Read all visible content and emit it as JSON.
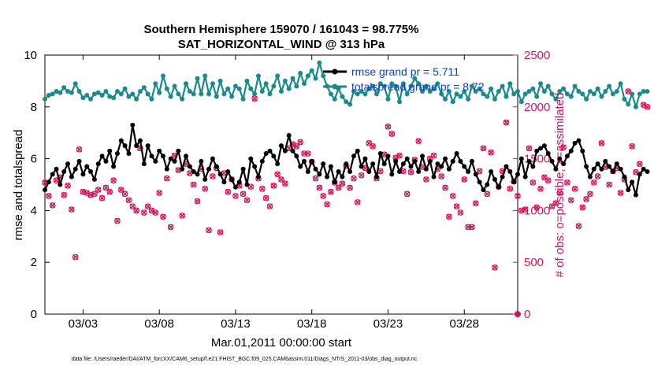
{
  "chart_data": {
    "type": "line",
    "title_line1": "Southern Hemisphere 159070 / 161043 = 98.775%",
    "title_line2": "SAT_HORIZONTAL_WIND @ 313 hPa",
    "xlabel": "Mar.01,2011 00:00:00 start",
    "ylabel_left": "rmse and totalspread",
    "ylabel_right": "# of obs: o=possible; ×=assimilated",
    "footer": "data file: /Users/raeder/DAI/ATM_forcXX/CAM6_setup/f.e21.FHIST_BGC.f09_025.CAM6assim.011/Diags_NTrS_2011-03/obs_diag_output.nc",
    "xlim": [
      0.5,
      31.5
    ],
    "ylim_left": [
      0,
      10
    ],
    "ylim_right": [
      0,
      2500
    ],
    "x_ticks": [
      {
        "x": 3,
        "label": "03/03"
      },
      {
        "x": 8,
        "label": "03/08"
      },
      {
        "x": 13,
        "label": "03/13"
      },
      {
        "x": 18,
        "label": "03/18"
      },
      {
        "x": 23,
        "label": "03/23"
      },
      {
        "x": 28,
        "label": "03/28"
      }
    ],
    "y_ticks_left": [
      0,
      2,
      4,
      6,
      8,
      10
    ],
    "y_ticks_right": [
      0,
      500,
      1000,
      1500,
      2000,
      2500
    ],
    "grid": false,
    "colors": {
      "rmse": "#000000",
      "spread": "#1a8a8a",
      "obs": "#d4145a",
      "legend_text": "#0a3fd6"
    },
    "legend": {
      "placement": "top-right",
      "entries": [
        "rmse grand pr = 5.711",
        "totalspread grand pr = 8.72"
      ]
    },
    "x_start": 0.5,
    "x_step": 0.25,
    "series": [
      {
        "name": "rmse grand pr = 5.711",
        "axis": "left",
        "values": [
          4.8,
          5.1,
          5.4,
          5.6,
          5.0,
          5.5,
          5.8,
          5.3,
          5.6,
          5.9,
          5.4,
          5.7,
          5.5,
          5.2,
          5.8,
          6.1,
          5.9,
          6.3,
          5.7,
          6.2,
          6.7,
          6.5,
          6.2,
          7.3,
          6.5,
          6.7,
          5.8,
          6.5,
          6.1,
          5.9,
          6.3,
          6.1,
          5.6,
          6.0,
          5.9,
          6.3,
          5.6,
          6.1,
          5.7,
          5.5,
          5.4,
          5.9,
          5.2,
          5.6,
          6.0,
          5.7,
          5.4,
          5.1,
          5.5,
          5.2,
          4.9,
          5.1,
          5.6,
          5.0,
          6.0,
          5.7,
          5.3,
          5.9,
          6.2,
          6.3,
          6.1,
          5.8,
          6.5,
          6.3,
          6.9,
          6.3,
          6.1,
          5.7,
          5.9,
          5.5,
          5.9,
          5.6,
          5.4,
          5.8,
          5.3,
          5.7,
          5.1,
          5.5,
          5.3,
          5.8,
          5.5,
          6.1,
          6.3,
          5.7,
          6.0,
          5.5,
          5.8,
          5.3,
          6.2,
          5.8,
          6.1,
          5.4,
          5.9,
          5.5,
          5.8,
          6.0,
          5.7,
          5.9,
          5.5,
          6.1,
          5.6,
          5.9,
          5.3,
          5.8,
          5.7,
          6.0,
          5.6,
          5.9,
          6.2,
          5.9,
          5.7,
          5.5,
          5.9,
          5.4,
          5.1,
          4.8,
          5.0,
          5.5,
          5.2,
          4.9,
          5.3,
          5.7,
          5.5,
          5.1,
          5.4,
          6.0,
          5.3,
          5.9,
          5.7,
          6.3,
          6.4,
          6.5,
          6.2,
          5.9,
          5.6,
          6.0,
          5.8,
          6.1,
          6.3,
          6.6,
          6.7,
          6.3,
          5.7,
          5.3,
          5.6,
          5.8,
          5.6,
          5.9,
          5.7,
          5.5,
          5.8,
          5.6,
          5.3,
          4.8,
          5.1,
          4.6,
          5.4,
          5.6,
          5.5
        ]
      },
      {
        "name": "totalspread grand pr = 8.72",
        "axis": "left",
        "values": [
          8.3,
          8.45,
          8.5,
          8.6,
          8.55,
          8.75,
          8.6,
          8.55,
          8.9,
          8.6,
          8.35,
          8.45,
          8.3,
          8.5,
          8.55,
          8.45,
          8.6,
          8.4,
          8.35,
          8.6,
          8.5,
          8.7,
          8.4,
          8.5,
          8.3,
          8.6,
          8.75,
          8.5,
          8.3,
          8.9,
          8.55,
          9.2,
          8.7,
          8.4,
          8.8,
          8.5,
          8.3,
          8.9,
          8.6,
          8.5,
          9.1,
          8.5,
          9.2,
          8.5,
          8.9,
          8.4,
          9.0,
          8.5,
          8.7,
          8.4,
          8.8,
          8.7,
          8.3,
          9.0,
          8.7,
          8.5,
          9.2,
          8.6,
          8.9,
          8.5,
          8.8,
          9.2,
          8.6,
          9.0,
          8.7,
          9.1,
          8.8,
          9.3,
          8.9,
          9.2,
          9.4,
          9.1,
          9.7,
          9.2,
          8.8,
          8.5,
          8.3,
          8.7,
          8.4,
          8.2,
          8.1,
          8.6,
          8.5,
          8.6,
          8.5,
          8.7,
          8.8,
          8.5,
          8.9,
          8.8,
          8.3,
          8.9,
          8.8,
          8.2,
          8.9,
          8.5,
          8.8,
          9.1,
          8.9,
          8.6,
          8.8,
          8.6,
          8.7,
          8.9,
          8.5,
          8.3,
          8.6,
          8.2,
          8.5,
          8.4,
          8.6,
          8.3,
          8.8,
          8.6,
          8.7,
          8.5,
          8.4,
          8.7,
          8.3,
          8.6,
          8.8,
          8.4,
          8.9,
          8.5,
          8.6,
          8.2,
          8.5,
          8.6,
          8.7,
          8.4,
          8.9,
          8.6,
          8.8,
          8.5,
          8.3,
          8.6,
          8.7,
          8.5,
          8.4,
          8.8,
          8.6,
          8.5,
          8.3,
          8.6,
          8.5,
          8.7,
          8.4,
          8.6,
          8.8,
          8.5,
          8.6,
          8.9,
          8.3,
          8.1,
          8.5,
          8.0,
          8.5,
          8.6,
          8.6
        ]
      },
      {
        "name": "# of obs possible / assimilated",
        "axis": "right",
        "values": [
          1270,
          1140,
          1050,
          1290,
          1320,
          1150,
          1240,
          1010,
          550,
          1590,
          1180,
          1170,
          1150,
          1160,
          1200,
          1120,
          1220,
          1180,
          1290,
          900,
          1200,
          1160,
          1100,
          1040,
          1000,
          1600,
          980,
          1040,
          1000,
          980,
          1170,
          940,
          1310,
          840,
          1530,
          1390,
          950,
          1450,
          1360,
          1250,
          1090,
          1400,
          1210,
          810,
          1330,
          1410,
          790,
          1360,
          1180,
          1300,
          1140,
          1240,
          1160,
          1100,
          1230,
          2080,
          1310,
          1210,
          1120,
          1040,
          1240,
          1350,
          1300,
          1260,
          1600,
          1640,
          1620,
          1660,
          1550,
          1550,
          1470,
          1310,
          1220,
          1140,
          1060,
          1180,
          1270,
          1220,
          1260,
          1430,
          1220,
          1310,
          1080,
          1340,
          1410,
          1650,
          1620,
          1310,
          1380,
          1540,
          1810,
          1740,
          1510,
          1530,
          1380,
          1160,
          1370,
          1490,
          1670,
          1420,
          1300,
          1500,
          1530,
          1400,
          1330,
          1220,
          940,
          1140,
          1040,
          980,
          1300,
          840,
          840,
          1070,
          1380,
          1600,
          1160,
          1560,
          450,
          1230,
          1380,
          1850,
          1210,
          1280,
          1140,
          1000,
          1010,
          1600,
          1270,
          1030,
          1210,
          1320,
          1290,
          1040,
          1070,
          1170,
          1610,
          1270,
          1100,
          1210,
          850,
          1030,
          1110,
          1160,
          1270,
          1330,
          1650,
          1420,
          1250,
          1380,
          1410,
          1170,
          1300,
          2150,
          1620,
          1370,
          1450,
          2020,
          2000
        ]
      }
    ]
  }
}
